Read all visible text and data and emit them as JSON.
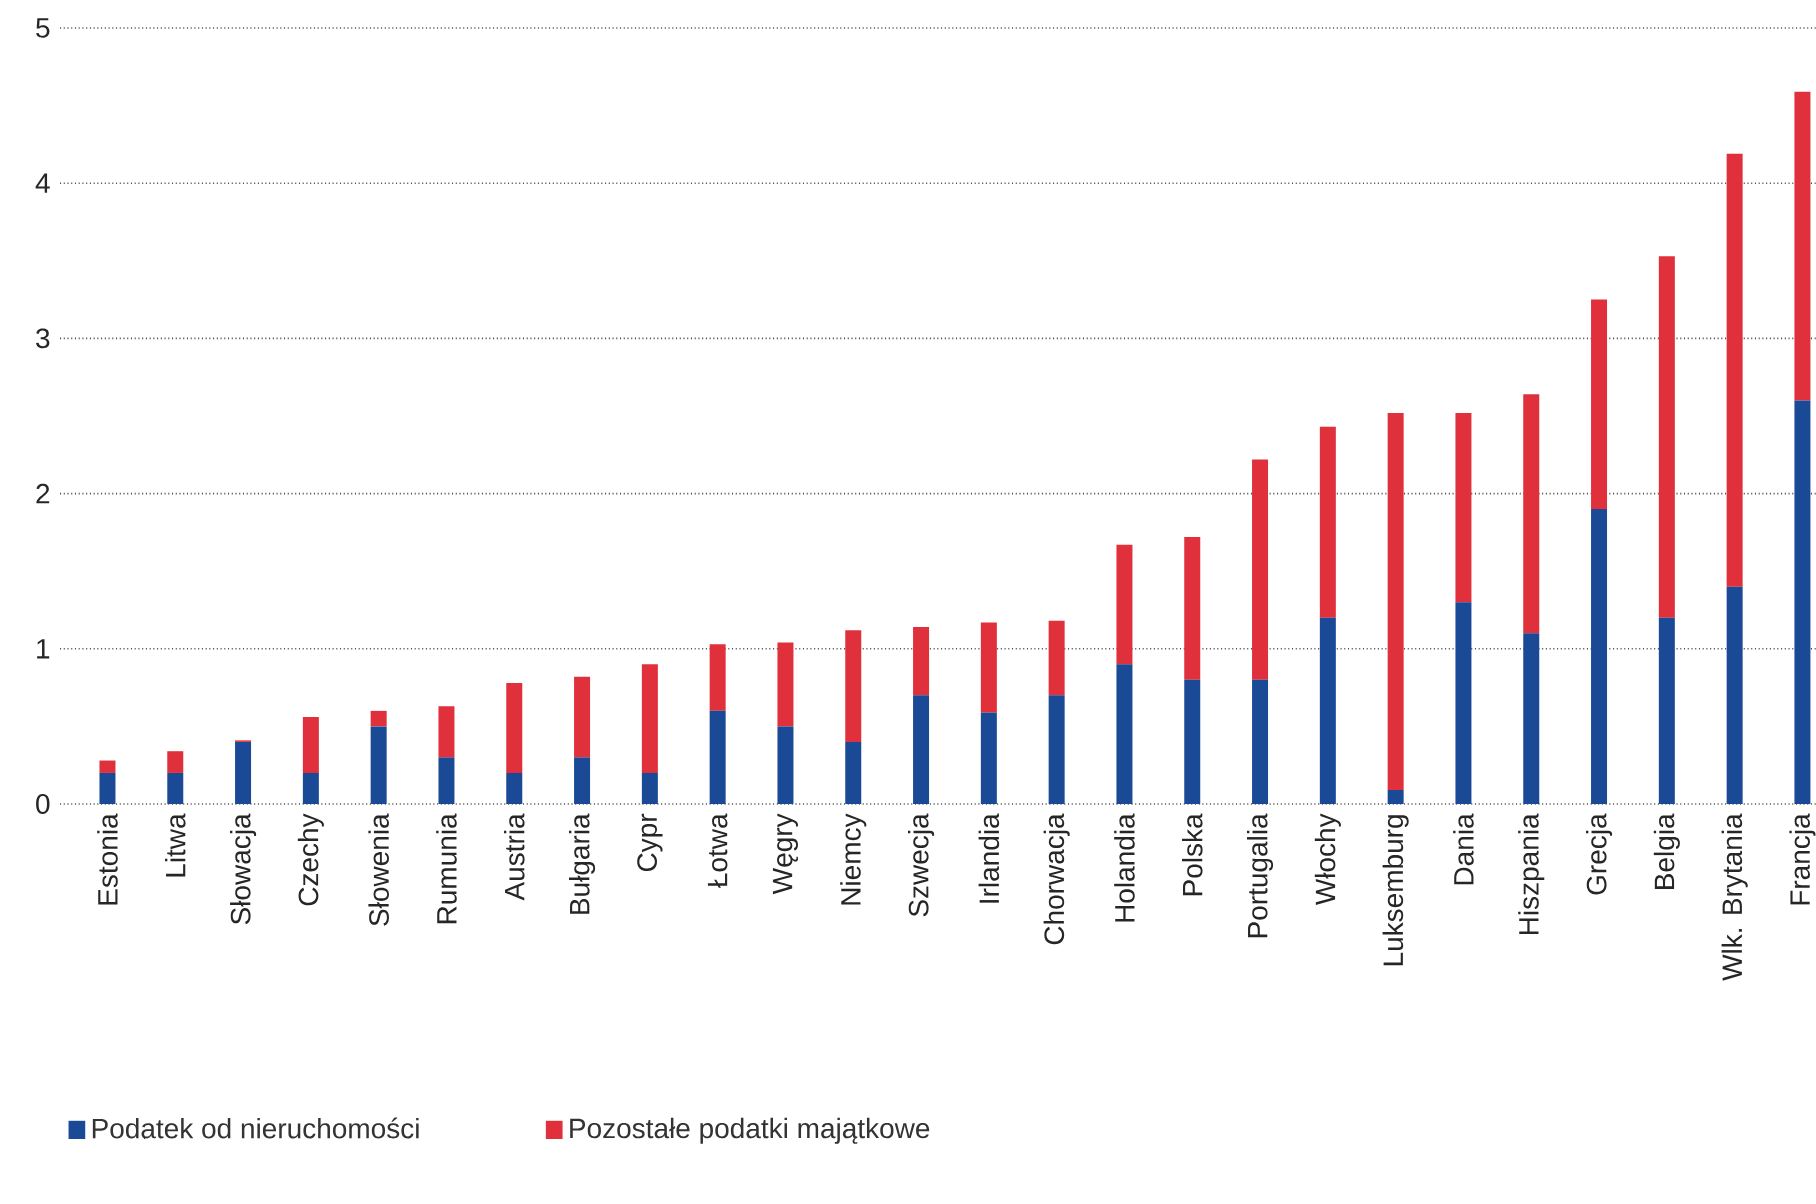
{
  "chart_data": {
    "type": "bar",
    "stacked": true,
    "categories": [
      "Estonia",
      "Litwa",
      "Słowacja",
      "Czechy",
      "Słowenia",
      "Rumunia",
      "Austria",
      "Bułgaria",
      "Cypr",
      "Łotwa",
      "Węgry",
      "Niemcy",
      "Szwecja",
      "Irlandia",
      "Chorwacja",
      "Holandia",
      "Polska",
      "Portugalia",
      "Włochy",
      "Luksemburg",
      "Dania",
      "Hiszpania",
      "Grecja",
      "Belgia",
      "Wlk. Brytania",
      "Francja"
    ],
    "series": [
      {
        "name": "Podatek od nieruchomości",
        "color": "#1a4a96",
        "values": [
          0.2,
          0.2,
          0.4,
          0.2,
          0.5,
          0.3,
          0.2,
          0.3,
          0.2,
          0.6,
          0.5,
          0.4,
          0.7,
          0.59,
          0.7,
          0.9,
          0.8,
          0.8,
          1.2,
          0.09,
          1.3,
          1.1,
          1.9,
          1.2,
          1.4,
          2.6
        ]
      },
      {
        "name": "Pozostałe podatki majątkowe",
        "color": "#e0303c",
        "values": [
          0.08,
          0.14,
          0.01,
          0.36,
          0.1,
          0.33,
          0.58,
          0.52,
          0.7,
          0.43,
          0.54,
          0.72,
          0.44,
          0.58,
          0.48,
          0.77,
          0.92,
          1.42,
          1.23,
          2.43,
          1.22,
          1.54,
          1.35,
          2.33,
          2.79,
          1.99
        ]
      }
    ],
    "ylim": [
      0,
      5
    ],
    "yticks": [
      0,
      1,
      2,
      3,
      4,
      5
    ],
    "grid": "y",
    "legend": "bottom"
  }
}
